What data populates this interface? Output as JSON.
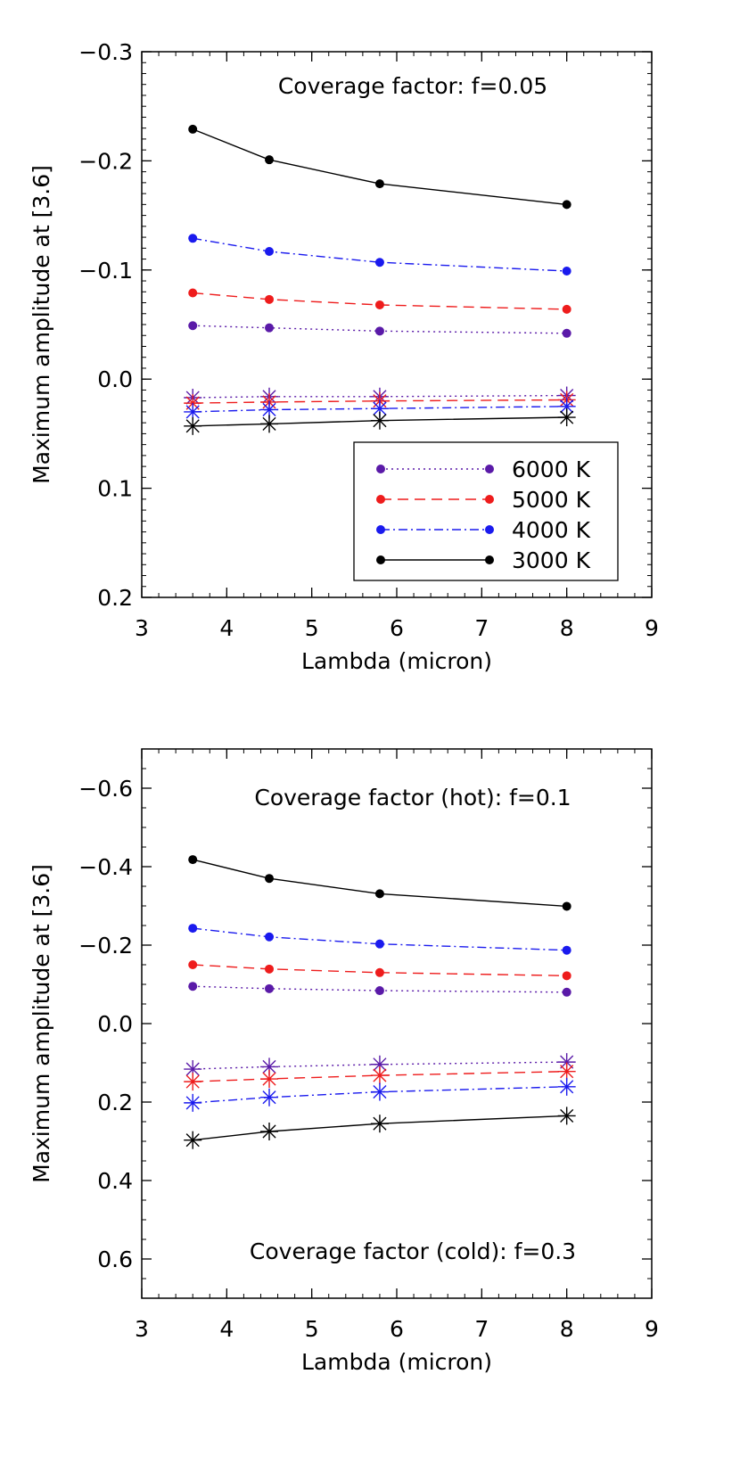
{
  "chart_data": [
    {
      "type": "line",
      "annotation": "Coverage factor: f=0.05",
      "xlabel": "Lambda (micron)",
      "ylabel": "Maximum amplitude at [3.6]",
      "xlim": [
        3,
        9
      ],
      "ylim": [
        0.2,
        -0.3
      ],
      "y_reversed": true,
      "xticks": [
        "3",
        "4",
        "5",
        "6",
        "7",
        "8",
        "9"
      ],
      "yticks": [
        "−0.3",
        "−0.2",
        "−0.1",
        "0.0",
        "0.1",
        "0.2"
      ],
      "ytick_values": [
        -0.3,
        -0.2,
        -0.1,
        0.0,
        0.1,
        0.2
      ],
      "grid": false,
      "legend": {
        "placement": "bottom-right",
        "entries": [
          "6000 K",
          "5000 K",
          "4000 K",
          "3000 K"
        ]
      },
      "x": [
        3.6,
        4.5,
        5.8,
        8.0
      ],
      "series": [
        {
          "name": "6000 K",
          "group": "hot",
          "marker": "dot",
          "color": "#5a1aa8",
          "dash": "dotted",
          "values": [
            -0.049,
            -0.047,
            -0.044,
            -0.042
          ]
        },
        {
          "name": "5000 K",
          "group": "hot",
          "marker": "dot",
          "color": "#ee1c1c",
          "dash": "dashed",
          "values": [
            -0.079,
            -0.073,
            -0.068,
            -0.064
          ]
        },
        {
          "name": "4000 K",
          "group": "hot",
          "marker": "dot",
          "color": "#1a1aee",
          "dash": "dashdot",
          "values": [
            -0.129,
            -0.117,
            -0.107,
            -0.099
          ]
        },
        {
          "name": "3000 K",
          "group": "hot",
          "marker": "dot",
          "color": "#000000",
          "dash": "solid",
          "values": [
            -0.229,
            -0.201,
            -0.179,
            -0.16
          ]
        },
        {
          "group": "cold",
          "marker": "asterisk",
          "color": "#5a1aa8",
          "dash": "dotted",
          "values": [
            0.017,
            0.016,
            0.016,
            0.015
          ]
        },
        {
          "group": "cold",
          "marker": "asterisk",
          "color": "#ee1c1c",
          "dash": "dashed",
          "values": [
            0.022,
            0.021,
            0.02,
            0.019
          ]
        },
        {
          "group": "cold",
          "marker": "asterisk",
          "color": "#1a1aee",
          "dash": "dashdot",
          "values": [
            0.03,
            0.028,
            0.027,
            0.025
          ]
        },
        {
          "group": "cold",
          "marker": "asterisk",
          "color": "#000000",
          "dash": "solid",
          "values": [
            0.043,
            0.041,
            0.038,
            0.035
          ]
        }
      ]
    },
    {
      "type": "line",
      "annotation": "Coverage factor (hot): f=0.1",
      "annotation2": "Coverage factor (cold): f=0.3",
      "xlabel": "Lambda (micron)",
      "ylabel": "Maximum amplitude at [3.6]",
      "xlim": [
        3,
        9
      ],
      "ylim": [
        0.7,
        -0.7
      ],
      "y_reversed": true,
      "xticks": [
        "3",
        "4",
        "5",
        "6",
        "7",
        "8",
        "9"
      ],
      "yticks": [
        "−0.6",
        "−0.4",
        "−0.2",
        "0.0",
        "0.2",
        "0.4",
        "0.6"
      ],
      "ytick_values": [
        -0.6,
        -0.4,
        -0.2,
        0.0,
        0.2,
        0.4,
        0.6
      ],
      "grid": false,
      "x": [
        3.6,
        4.5,
        5.8,
        8.0
      ],
      "series": [
        {
          "group": "hot",
          "marker": "dot",
          "color": "#5a1aa8",
          "dash": "dotted",
          "values": [
            -0.095,
            -0.089,
            -0.084,
            -0.08
          ]
        },
        {
          "group": "hot",
          "marker": "dot",
          "color": "#ee1c1c",
          "dash": "dashed",
          "values": [
            -0.15,
            -0.139,
            -0.13,
            -0.122
          ]
        },
        {
          "group": "hot",
          "marker": "dot",
          "color": "#1a1aee",
          "dash": "dashdot",
          "values": [
            -0.243,
            -0.221,
            -0.203,
            -0.187
          ]
        },
        {
          "group": "hot",
          "marker": "dot",
          "color": "#000000",
          "dash": "solid",
          "values": [
            -0.418,
            -0.37,
            -0.331,
            -0.299
          ]
        },
        {
          "group": "cold",
          "marker": "asterisk",
          "color": "#5a1aa8",
          "dash": "dotted",
          "values": [
            0.116,
            0.11,
            0.104,
            0.098
          ]
        },
        {
          "group": "cold",
          "marker": "asterisk",
          "color": "#ee1c1c",
          "dash": "dashed",
          "values": [
            0.148,
            0.141,
            0.132,
            0.122
          ]
        },
        {
          "group": "cold",
          "marker": "asterisk",
          "color": "#1a1aee",
          "dash": "dashdot",
          "values": [
            0.202,
            0.188,
            0.174,
            0.161
          ]
        },
        {
          "group": "cold",
          "marker": "asterisk",
          "color": "#000000",
          "dash": "solid",
          "values": [
            0.297,
            0.275,
            0.255,
            0.235
          ]
        }
      ]
    }
  ]
}
